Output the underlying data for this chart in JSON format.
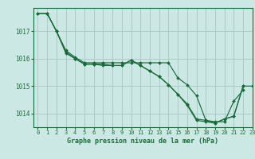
{
  "title": "Graphe pression niveau de la mer (hPa)",
  "bg_color": "#cce8e4",
  "grid_color": "#aaccc8",
  "line_color": "#1a6b3a",
  "text_color": "#1a6b3a",
  "xlim": [
    -0.5,
    23
  ],
  "ylim": [
    1013.5,
    1017.85
  ],
  "yticks": [
    1014,
    1015,
    1016,
    1017
  ],
  "xticks": [
    0,
    1,
    2,
    3,
    4,
    5,
    6,
    7,
    8,
    9,
    10,
    11,
    12,
    13,
    14,
    15,
    16,
    17,
    18,
    19,
    20,
    21,
    22,
    23
  ],
  "series": [
    {
      "x": [
        0,
        1,
        2,
        3,
        4,
        5,
        6,
        7,
        8,
        9,
        10,
        11,
        12,
        13,
        14,
        15,
        16,
        17,
        18,
        19,
        20,
        21,
        22
      ],
      "y": [
        1017.65,
        1017.65,
        1017.0,
        1016.3,
        1016.05,
        1015.85,
        1015.85,
        1015.85,
        1015.85,
        1015.85,
        1015.85,
        1015.85,
        1015.85,
        1015.85,
        1015.85,
        1015.3,
        1015.05,
        1014.65,
        1013.75,
        1013.7,
        1013.7,
        1014.45,
        1014.85
      ]
    },
    {
      "x": [
        0,
        1,
        2,
        3,
        4,
        5,
        6,
        7,
        8,
        9,
        10,
        11,
        12,
        13,
        14,
        15,
        16,
        17,
        18,
        19,
        20,
        21,
        22
      ],
      "y": [
        1017.65,
        1017.65,
        1017.0,
        1016.25,
        1016.0,
        1015.8,
        1015.8,
        1015.75,
        1015.75,
        1015.75,
        1015.95,
        1015.75,
        1015.55,
        1015.35,
        1015.05,
        1014.7,
        1014.3,
        1013.75,
        1013.7,
        1013.65,
        1013.8,
        1013.9,
        1015.0
      ]
    },
    {
      "x": [
        1,
        2,
        3,
        4,
        5,
        6,
        7,
        8,
        9,
        10,
        11,
        12,
        13,
        14,
        15,
        16,
        17,
        18,
        19,
        20,
        21,
        22,
        23
      ],
      "y": [
        1017.65,
        1017.0,
        1016.2,
        1016.0,
        1015.8,
        1015.8,
        1015.8,
        1015.75,
        1015.75,
        1015.95,
        1015.75,
        1015.55,
        1015.35,
        1015.05,
        1014.7,
        1014.35,
        1013.8,
        1013.75,
        1013.65,
        1013.8,
        1013.9,
        1015.0,
        1015.0
      ]
    }
  ]
}
